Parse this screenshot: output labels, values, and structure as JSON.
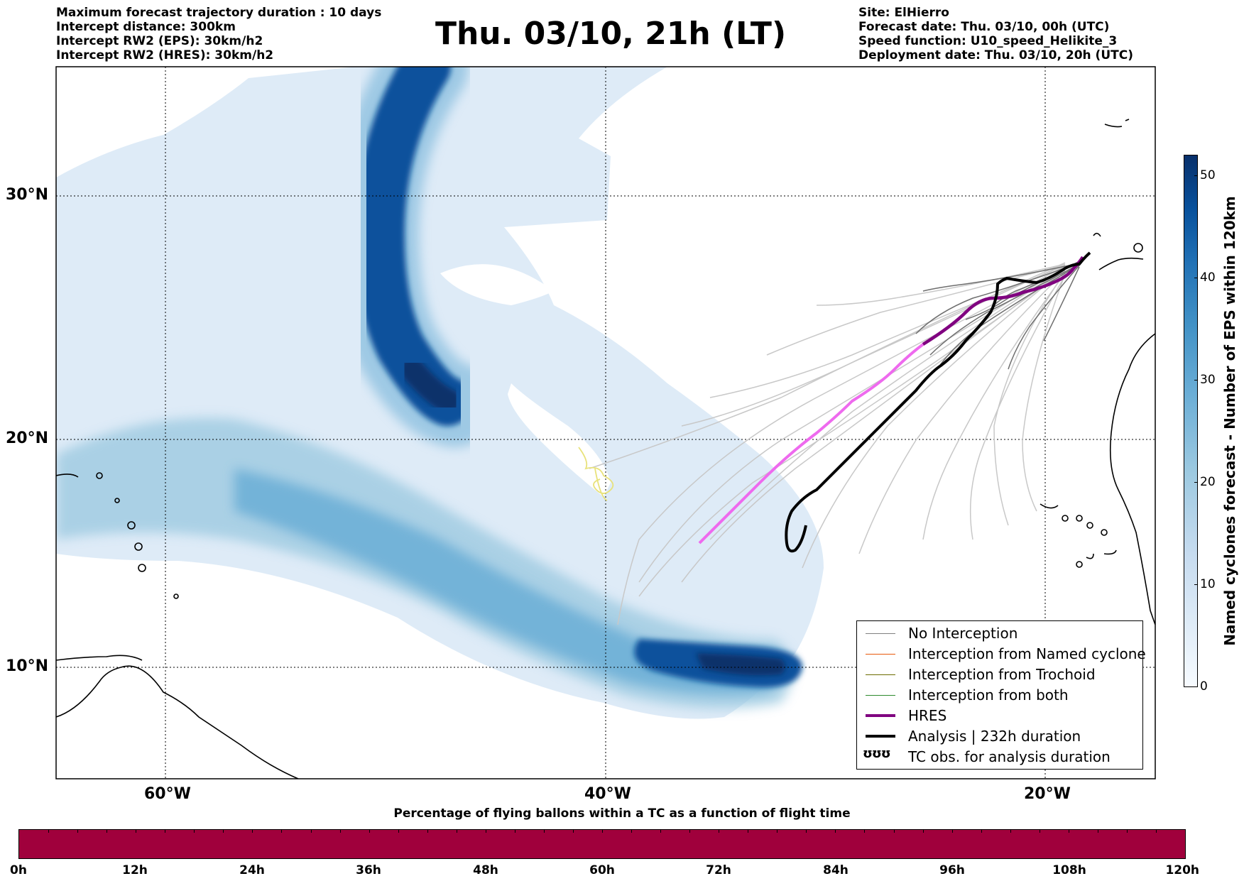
{
  "header": {
    "left_lines": [
      "Maximum forecast trajectory duration : 10 days",
      "Intercept distance: 300km",
      "Intercept RW2 (EPS):  30km/h2",
      "Intercept RW2 (HRES): 30km/h2"
    ],
    "title": "Thu. 03/10, 21h (LT)",
    "right_lines": [
      "Site: ElHierro",
      "Forecast date: Thu. 03/10, 00h (UTC)",
      "Speed function: U10_speed_Helikite_3",
      "Deployment date: Thu. 03/10, 20h (UTC)"
    ]
  },
  "map": {
    "lat_labels": [
      "30°N",
      "20°N",
      "10°N"
    ],
    "lon_labels": [
      "60°W",
      "40°W",
      "20°W"
    ],
    "colors": {
      "density_light": "#deebf7",
      "density_mid": "#6baed6",
      "density_dark": "#08519c",
      "ensemble_light": "#c8c8c8",
      "ensemble_dark": "#6e6e6e",
      "hres_purple": "#800080",
      "hres_pink": "#ee6aee",
      "analysis": "#000000",
      "obs_yellow": "#e8e27a"
    }
  },
  "legend": {
    "items": [
      {
        "label": "No Interception",
        "color": "#808080",
        "style": "thin"
      },
      {
        "label": "Interception from Named cyclone",
        "color": "#e8590c",
        "style": "thin"
      },
      {
        "label": "Interception from Trochoid",
        "color": "#6b6b00",
        "style": "thin"
      },
      {
        "label": "Interception from both",
        "color": "#2e8b2e",
        "style": "thin"
      },
      {
        "label": "HRES",
        "color": "#800080",
        "style": "thick"
      },
      {
        "label": "Analysis | 232h duration",
        "color": "#000000",
        "style": "thick"
      },
      {
        "label": "TC obs. for analysis duration",
        "color": "#000000",
        "style": "glyph",
        "glyph": "ʊʊʊ"
      }
    ]
  },
  "colorbar": {
    "label": "Named cyclones forecast - Number of EPS within 120km",
    "ticks": [
      "0",
      "10",
      "20",
      "30",
      "40",
      "50"
    ],
    "min": 0,
    "max": 52
  },
  "timebar": {
    "title": "Percentage of flying ballons within a TC as a function of flight time",
    "color": "#a0003c",
    "ticks": [
      "0h",
      "12h",
      "24h",
      "36h",
      "48h",
      "60h",
      "72h",
      "84h",
      "96h",
      "108h",
      "120h"
    ]
  }
}
